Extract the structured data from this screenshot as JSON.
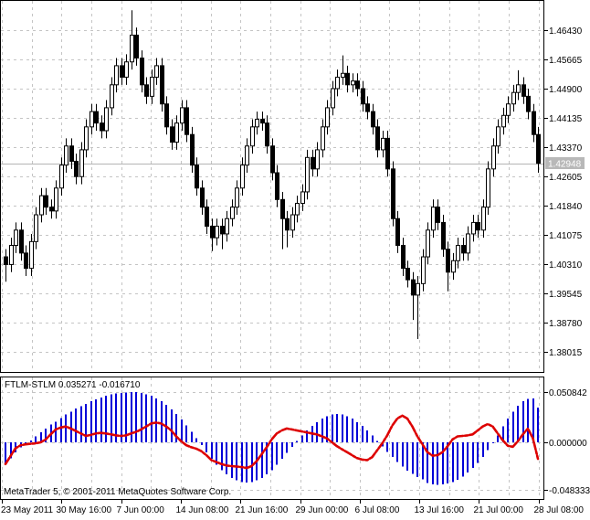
{
  "app_title": "MetaTrader 5",
  "indicator_header": "FTLM-STLM 0.035271 -0.016710",
  "copyright": "MetaTrader 5, © 2001-2011 MetaQuotes Software Corp.",
  "current_price_label": "1.42948",
  "colors": {
    "background": "#ffffff",
    "grid": "#c4c4c4",
    "border": "#000000",
    "wick": "#000000",
    "bull_body": "#ffffff",
    "bear_body": "#000000",
    "histogram": "#0000d8",
    "signal_line": "#dd0000",
    "current_price_line": "#b4b4b4",
    "badge_bg": "#b8b8b8",
    "badge_text": "#ffffff"
  },
  "chart_data": [
    {
      "type": "candlestick",
      "title": "",
      "grid": true,
      "axis_position": "right",
      "x_axis": {
        "labels": [
          "23 May 2011",
          "30 May 16:00",
          "7 Jun 00:00",
          "14 Jun 08:00",
          "21 Jun 16:00",
          "29 Jun 00:00",
          "6 Jul 08:00",
          "13 Jul 16:00",
          "21 Jul 00:00",
          "28 Jul 08:00"
        ]
      },
      "y_axis": {
        "tick_labels": [
          "1.46430",
          "1.45665",
          "1.44900",
          "1.44135",
          "1.43370",
          "1.42605",
          "1.41840",
          "1.41075",
          "1.40310",
          "1.39545",
          "1.38780",
          "1.38015"
        ],
        "current_price": 1.42948,
        "range": [
          1.37443,
          1.47219
        ]
      },
      "ohlc": [
        [
          1.405,
          1.407,
          1.3985,
          1.403
        ],
        [
          1.403,
          1.41,
          1.401,
          1.408
        ],
        [
          1.408,
          1.414,
          1.406,
          1.412
        ],
        [
          1.412,
          1.414,
          1.404,
          1.406
        ],
        [
          1.406,
          1.408,
          1.4,
          1.402
        ],
        [
          1.402,
          1.411,
          1.4,
          1.409
        ],
        [
          1.409,
          1.418,
          1.407,
          1.416
        ],
        [
          1.416,
          1.423,
          1.414,
          1.421
        ],
        [
          1.421,
          1.423,
          1.416,
          1.418
        ],
        [
          1.418,
          1.42,
          1.415,
          1.417
        ],
        [
          1.417,
          1.425,
          1.415,
          1.423
        ],
        [
          1.423,
          1.431,
          1.421,
          1.429
        ],
        [
          1.429,
          1.436,
          1.427,
          1.434
        ],
        [
          1.434,
          1.436,
          1.428,
          1.43
        ],
        [
          1.43,
          1.432,
          1.424,
          1.426
        ],
        [
          1.426,
          1.435,
          1.424,
          1.433
        ],
        [
          1.433,
          1.441,
          1.431,
          1.439
        ],
        [
          1.439,
          1.445,
          1.437,
          1.443
        ],
        [
          1.443,
          1.445,
          1.438,
          1.44
        ],
        [
          1.44,
          1.442,
          1.436,
          1.438
        ],
        [
          1.438,
          1.446,
          1.436,
          1.444
        ],
        [
          1.444,
          1.452,
          1.442,
          1.45
        ],
        [
          1.45,
          1.457,
          1.448,
          1.455
        ],
        [
          1.455,
          1.457,
          1.45,
          1.452
        ],
        [
          1.452,
          1.458,
          1.45,
          1.456
        ],
        [
          1.456,
          1.4695,
          1.454,
          1.463
        ],
        [
          1.463,
          1.465,
          1.455,
          1.457
        ],
        [
          1.457,
          1.459,
          1.448,
          1.45
        ],
        [
          1.45,
          1.452,
          1.445,
          1.447
        ],
        [
          1.447,
          1.454,
          1.445,
          1.452
        ],
        [
          1.452,
          1.457,
          1.45,
          1.455
        ],
        [
          1.455,
          1.457,
          1.443,
          1.445
        ],
        [
          1.445,
          1.447,
          1.437,
          1.439
        ],
        [
          1.439,
          1.441,
          1.433,
          1.435
        ],
        [
          1.435,
          1.442,
          1.433,
          1.44
        ],
        [
          1.44,
          1.446,
          1.438,
          1.444
        ],
        [
          1.444,
          1.446,
          1.435,
          1.437
        ],
        [
          1.437,
          1.439,
          1.427,
          1.429
        ],
        [
          1.429,
          1.431,
          1.421,
          1.423
        ],
        [
          1.423,
          1.425,
          1.416,
          1.418
        ],
        [
          1.418,
          1.42,
          1.411,
          1.413
        ],
        [
          1.413,
          1.415,
          1.4065,
          1.41
        ],
        [
          1.41,
          1.415,
          1.408,
          1.413
        ],
        [
          1.413,
          1.415,
          1.407,
          1.411
        ],
        [
          1.411,
          1.417,
          1.409,
          1.415
        ],
        [
          1.415,
          1.42,
          1.413,
          1.418
        ],
        [
          1.418,
          1.425,
          1.416,
          1.423
        ],
        [
          1.423,
          1.431,
          1.421,
          1.429
        ],
        [
          1.429,
          1.436,
          1.427,
          1.434
        ],
        [
          1.434,
          1.441,
          1.432,
          1.439
        ],
        [
          1.439,
          1.443,
          1.437,
          1.441
        ],
        [
          1.441,
          1.443,
          1.438,
          1.44
        ],
        [
          1.44,
          1.442,
          1.432,
          1.434
        ],
        [
          1.434,
          1.436,
          1.425,
          1.427
        ],
        [
          1.427,
          1.429,
          1.418,
          1.42
        ],
        [
          1.42,
          1.422,
          1.407,
          1.415
        ],
        [
          1.415,
          1.417,
          1.4075,
          1.412
        ],
        [
          1.412,
          1.418,
          1.41,
          1.416
        ],
        [
          1.416,
          1.421,
          1.414,
          1.419
        ],
        [
          1.419,
          1.424,
          1.417,
          1.422
        ],
        [
          1.422,
          1.433,
          1.42,
          1.431
        ],
        [
          1.431,
          1.433,
          1.426,
          1.428
        ],
        [
          1.428,
          1.435,
          1.426,
          1.433
        ],
        [
          1.433,
          1.441,
          1.431,
          1.439
        ],
        [
          1.439,
          1.446,
          1.437,
          1.444
        ],
        [
          1.444,
          1.451,
          1.442,
          1.449
        ],
        [
          1.449,
          1.454,
          1.447,
          1.452
        ],
        [
          1.452,
          1.4577,
          1.45,
          1.453
        ],
        [
          1.453,
          1.455,
          1.448,
          1.45
        ],
        [
          1.45,
          1.453,
          1.448,
          1.451
        ],
        [
          1.451,
          1.453,
          1.447,
          1.449
        ],
        [
          1.449,
          1.451,
          1.443,
          1.445
        ],
        [
          1.445,
          1.447,
          1.441,
          1.443
        ],
        [
          1.443,
          1.445,
          1.437,
          1.439
        ],
        [
          1.439,
          1.441,
          1.431,
          1.433
        ],
        [
          1.433,
          1.438,
          1.431,
          1.436
        ],
        [
          1.436,
          1.438,
          1.426,
          1.428
        ],
        [
          1.428,
          1.43,
          1.413,
          1.415
        ],
        [
          1.415,
          1.417,
          1.406,
          1.408
        ],
        [
          1.408,
          1.41,
          1.4,
          1.402
        ],
        [
          1.402,
          1.404,
          1.397,
          1.399
        ],
        [
          1.399,
          1.401,
          1.3885,
          1.395
        ],
        [
          1.395,
          1.4,
          1.3835,
          1.398
        ],
        [
          1.398,
          1.407,
          1.396,
          1.405
        ],
        [
          1.405,
          1.414,
          1.403,
          1.412
        ],
        [
          1.412,
          1.42,
          1.41,
          1.418
        ],
        [
          1.418,
          1.42,
          1.412,
          1.414
        ],
        [
          1.414,
          1.416,
          1.405,
          1.407
        ],
        [
          1.407,
          1.409,
          1.396,
          1.401
        ],
        [
          1.401,
          1.406,
          1.399,
          1.404
        ],
        [
          1.404,
          1.41,
          1.402,
          1.408
        ],
        [
          1.408,
          1.41,
          1.404,
          1.406
        ],
        [
          1.406,
          1.413,
          1.404,
          1.411
        ],
        [
          1.411,
          1.416,
          1.409,
          1.414
        ],
        [
          1.414,
          1.416,
          1.41,
          1.412
        ],
        [
          1.412,
          1.42,
          1.41,
          1.418
        ],
        [
          1.418,
          1.43,
          1.416,
          1.428
        ],
        [
          1.428,
          1.436,
          1.426,
          1.434
        ],
        [
          1.434,
          1.441,
          1.432,
          1.439
        ],
        [
          1.439,
          1.444,
          1.437,
          1.442
        ],
        [
          1.442,
          1.447,
          1.44,
          1.445
        ],
        [
          1.445,
          1.45,
          1.443,
          1.448
        ],
        [
          1.448,
          1.4538,
          1.446,
          1.45
        ],
        [
          1.45,
          1.452,
          1.445,
          1.447
        ],
        [
          1.447,
          1.449,
          1.441,
          1.443
        ],
        [
          1.443,
          1.445,
          1.435,
          1.437
        ],
        [
          1.437,
          1.439,
          1.427,
          1.42948
        ]
      ]
    },
    {
      "type": "bar",
      "name": "FTLM-STLM",
      "header": "FTLM-STLM 0.035271 -0.016710",
      "ftlm_value": 0.035271,
      "stlm_value": -0.01671,
      "grid": true,
      "y_axis": {
        "tick_labels": [
          "0.050842",
          "0.000000",
          "-0.048333"
        ]
      },
      "series": [
        {
          "name": "FTLM",
          "style": "histogram",
          "color": "#0000d8",
          "values": [
            -0.022,
            -0.016,
            -0.01,
            -0.005,
            -0.001,
            0.002,
            0.006,
            0.01,
            0.014,
            0.018,
            0.021,
            0.0245,
            0.028,
            0.031,
            0.034,
            0.0365,
            0.039,
            0.0415,
            0.0435,
            0.0455,
            0.047,
            0.0483,
            0.0493,
            0.05,
            0.0505,
            0.0508,
            0.0508,
            0.05,
            0.0487,
            0.047,
            0.0445,
            0.0415,
            0.0378,
            0.0335,
            0.0285,
            0.023,
            0.017,
            0.0105,
            0.004,
            -0.003,
            -0.01,
            -0.0165,
            -0.0225,
            -0.028,
            -0.0325,
            -0.036,
            -0.0385,
            -0.04,
            -0.0405,
            -0.04,
            -0.0385,
            -0.036,
            -0.0325,
            -0.028,
            -0.0225,
            -0.0165,
            -0.0105,
            -0.0045,
            0.0015,
            0.007,
            0.012,
            0.0165,
            0.0205,
            0.024,
            0.0265,
            0.028,
            0.0285,
            0.028,
            0.0265,
            0.024,
            0.0205,
            0.0165,
            0.012,
            0.007,
            0.0015,
            -0.004,
            -0.0095,
            -0.015,
            -0.02,
            -0.0245,
            -0.0285,
            -0.032,
            -0.035,
            -0.0375,
            -0.041,
            -0.0425,
            -0.043,
            -0.0425,
            -0.0415,
            -0.04,
            -0.038,
            -0.0345,
            -0.0305,
            -0.026,
            -0.021,
            -0.015,
            -0.008,
            -0.001,
            0.007,
            0.016,
            0.024,
            0.031,
            0.037,
            0.0415,
            0.044,
            0.0445,
            0.0353
          ]
        },
        {
          "name": "STLM",
          "style": "dashed-line",
          "color": "#dd0000",
          "values": [
            -0.022,
            -0.014,
            -0.006,
            -0.003,
            -0.002,
            -0.0015,
            -0.001,
            0.0,
            0.003,
            0.008,
            0.013,
            0.015,
            0.016,
            0.014,
            0.0115,
            0.009,
            0.0065,
            0.0075,
            0.009,
            0.0095,
            0.009,
            0.008,
            0.007,
            0.0065,
            0.007,
            0.009,
            0.0105,
            0.013,
            0.016,
            0.019,
            0.02,
            0.019,
            0.016,
            0.012,
            0.006,
            0.001,
            -0.003,
            -0.005,
            -0.0065,
            -0.009,
            -0.013,
            -0.018,
            -0.02,
            -0.022,
            -0.0235,
            -0.024,
            -0.0245,
            -0.025,
            -0.026,
            -0.024,
            -0.019,
            -0.012,
            -0.005,
            0.003,
            0.009,
            0.012,
            0.014,
            0.013,
            0.012,
            0.011,
            0.01,
            0.009,
            0.008,
            0.006,
            0.004,
            0.0,
            -0.004,
            -0.007,
            -0.01,
            -0.013,
            -0.016,
            -0.0175,
            -0.018,
            -0.015,
            -0.008,
            -0.001,
            0.007,
            0.017,
            0.024,
            0.027,
            0.024,
            0.016,
            0.006,
            -0.002,
            -0.01,
            -0.0135,
            -0.013,
            -0.01,
            -0.004,
            0.003,
            0.006,
            0.0065,
            0.007,
            0.008,
            0.012,
            0.016,
            0.0185,
            0.016,
            0.009,
            0.002,
            -0.0035,
            -0.0045,
            0.001,
            0.008,
            0.014,
            0.004,
            -0.0167
          ]
        }
      ]
    }
  ]
}
